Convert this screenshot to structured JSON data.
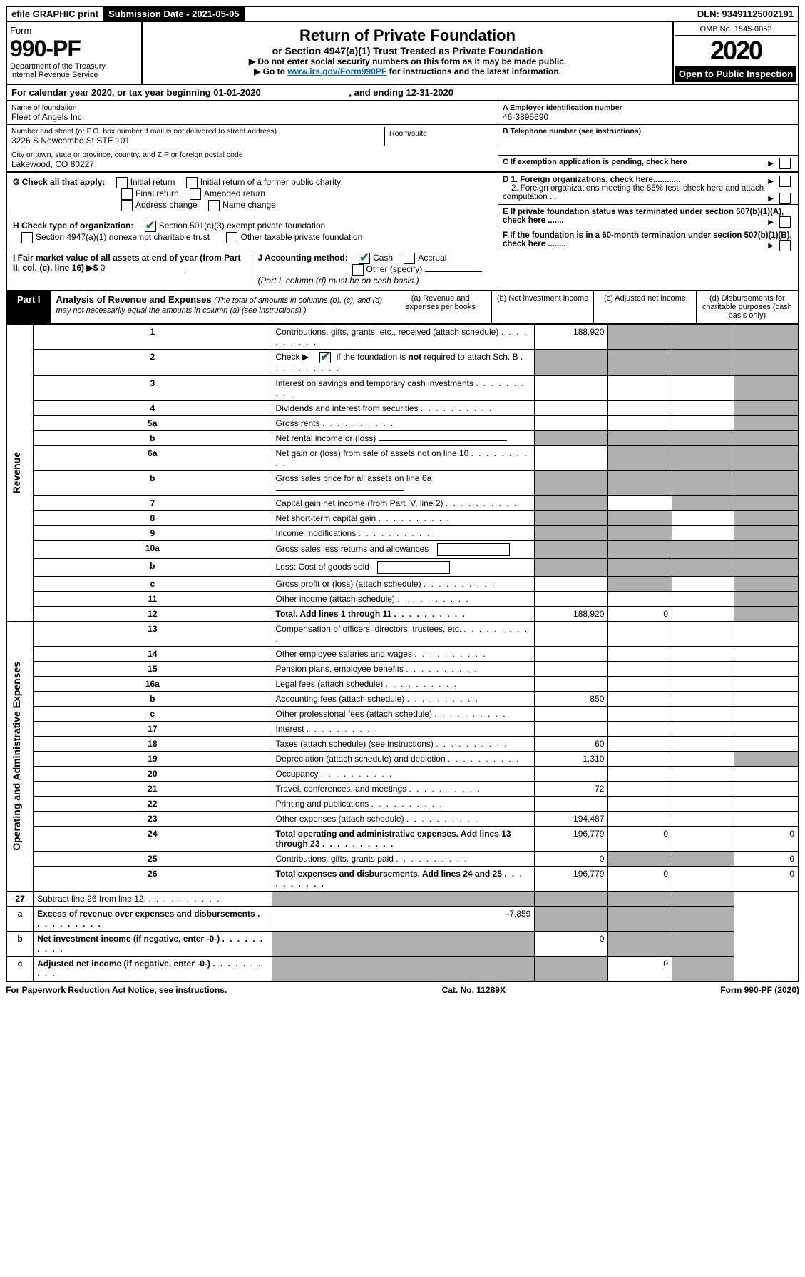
{
  "topbar": {
    "efile": "efile GRAPHIC print",
    "submission_label": "Submission Date - 2021-05-05",
    "dln_label": "DLN: 93491125002191"
  },
  "header": {
    "form_word": "Form",
    "form_no": "990-PF",
    "dept1": "Department of the Treasury",
    "dept2": "Internal Revenue Service",
    "title": "Return of Private Foundation",
    "subtitle": "or Section 4947(a)(1) Trust Treated as Private Foundation",
    "instr1": "▶ Do not enter social security numbers on this form as it may be made public.",
    "instr2_pre": "▶ Go to ",
    "instr2_link": "www.irs.gov/Form990PF",
    "instr2_post": " for instructions and the latest information.",
    "omb": "OMB No. 1545-0052",
    "year": "2020",
    "open": "Open to Public Inspection"
  },
  "calyear": {
    "text_a": "For calendar year 2020, or tax year beginning 01-01-2020",
    "text_b": ", and ending 12-31-2020"
  },
  "info": {
    "name_label": "Name of foundation",
    "name": "Fleet of Angels Inc",
    "addr_label": "Number and street (or P.O. box number if mail is not delivered to street address)",
    "addr": "3226 S Newcombe St STE 101",
    "room_label": "Room/suite",
    "city_label": "City or town, state or province, country, and ZIP or foreign postal code",
    "city": "Lakewood, CO  80227",
    "a_label": "A Employer identification number",
    "a_val": "46-3895690",
    "b_label": "B Telephone number (see instructions)",
    "c_label": "C If exemption application is pending, check here",
    "d1": "D 1. Foreign organizations, check here............",
    "d2": "2. Foreign organizations meeting the 85% test, check here and attach computation ...",
    "e": "E  If private foundation status was terminated under section 507(b)(1)(A), check here .......",
    "f": "F  If the foundation is in a 60-month termination under section 507(b)(1)(B), check here ........"
  },
  "g": {
    "label": "G Check all that apply:",
    "opts": [
      "Initial return",
      "Initial return of a former public charity",
      "Final return",
      "Amended return",
      "Address change",
      "Name change"
    ]
  },
  "h": {
    "label": "H Check type of organization:",
    "opt1": "Section 501(c)(3) exempt private foundation",
    "opt2": "Section 4947(a)(1) nonexempt charitable trust",
    "opt3": "Other taxable private foundation"
  },
  "i": {
    "label": "I Fair market value of all assets at end of year (from Part II, col. (c), line 16) ▶$ ",
    "val": "0"
  },
  "j": {
    "label": "J Accounting method:",
    "cash": "Cash",
    "accrual": "Accrual",
    "other": "Other (specify)",
    "note": "(Part I, column (d) must be on cash basis.)"
  },
  "part1": {
    "label": "Part I",
    "title": "Analysis of Revenue and Expenses",
    "title_note": " (The total of amounts in columns (b), (c), and (d) may not necessarily equal the amounts in column (a) (see instructions).)",
    "colA": "(a)   Revenue and expenses per books",
    "colB": "(b)  Net investment income",
    "colC": "(c)  Adjusted net income",
    "colD": "(d)  Disbursements for charitable purposes (cash basis only)"
  },
  "sections": {
    "revenue": "Revenue",
    "expenses": "Operating and Administrative Expenses"
  },
  "rows": [
    {
      "n": "1",
      "d": "Contributions, gifts, grants, etc., received (attach schedule)",
      "a": "188,920",
      "bGrey": true,
      "cGrey": true,
      "dGrey": true
    },
    {
      "n": "2",
      "d": "Check ▶ ☑ if the foundation is not required to attach Sch. B",
      "isCheck": true,
      "aGrey": true,
      "bGrey": true,
      "cGrey": true,
      "dGrey": true
    },
    {
      "n": "3",
      "d": "Interest on savings and temporary cash investments",
      "dGrey": true
    },
    {
      "n": "4",
      "d": "Dividends and interest from securities",
      "dGrey": true
    },
    {
      "n": "5a",
      "d": "Gross rents",
      "dGrey": true
    },
    {
      "n": "b",
      "d": "Net rental income or (loss)",
      "hasField": true,
      "aGrey": true,
      "bGrey": true,
      "cGrey": true,
      "dGrey": true
    },
    {
      "n": "6a",
      "d": "Net gain or (loss) from sale of assets not on line 10",
      "bGrey": true,
      "cGrey": true,
      "dGrey": true
    },
    {
      "n": "b",
      "d": "Gross sales price for all assets on line 6a",
      "hasField": true,
      "aGrey": true,
      "bGrey": true,
      "cGrey": true,
      "dGrey": true
    },
    {
      "n": "7",
      "d": "Capital gain net income (from Part IV, line 2)",
      "aGrey": true,
      "cGrey": true,
      "dGrey": true
    },
    {
      "n": "8",
      "d": "Net short-term capital gain",
      "aGrey": true,
      "bGrey": true,
      "dGrey": true
    },
    {
      "n": "9",
      "d": "Income modifications",
      "aGrey": true,
      "bGrey": true,
      "dGrey": true
    },
    {
      "n": "10a",
      "d": "Gross sales less returns and allowances",
      "hasFieldShort": true,
      "aGrey": true,
      "bGrey": true,
      "cGrey": true,
      "dGrey": true
    },
    {
      "n": "b",
      "d": "Less: Cost of goods sold",
      "hasFieldShort": true,
      "aGrey": true,
      "bGrey": true,
      "cGrey": true,
      "dGrey": true
    },
    {
      "n": "c",
      "d": "Gross profit or (loss) (attach schedule)",
      "bGrey": true,
      "dGrey": true
    },
    {
      "n": "11",
      "d": "Other income (attach schedule)",
      "dGrey": true
    },
    {
      "n": "12",
      "d": "Total. Add lines 1 through 11",
      "bold": true,
      "a": "188,920",
      "b": "0",
      "dGrey": true
    }
  ],
  "exp_rows": [
    {
      "n": "13",
      "d": "Compensation of officers, directors, trustees, etc."
    },
    {
      "n": "14",
      "d": "Other employee salaries and wages"
    },
    {
      "n": "15",
      "d": "Pension plans, employee benefits"
    },
    {
      "n": "16a",
      "d": "Legal fees (attach schedule)"
    },
    {
      "n": "b",
      "d": "Accounting fees (attach schedule)",
      "a": "850"
    },
    {
      "n": "c",
      "d": "Other professional fees (attach schedule)"
    },
    {
      "n": "17",
      "d": "Interest"
    },
    {
      "n": "18",
      "d": "Taxes (attach schedule) (see instructions)",
      "a": "60"
    },
    {
      "n": "19",
      "d": "Depreciation (attach schedule) and depletion",
      "a": "1,310",
      "dGrey": true
    },
    {
      "n": "20",
      "d": "Occupancy"
    },
    {
      "n": "21",
      "d": "Travel, conferences, and meetings",
      "a": "72"
    },
    {
      "n": "22",
      "d": "Printing and publications"
    },
    {
      "n": "23",
      "d": "Other expenses (attach schedule)",
      "a": "194,487"
    },
    {
      "n": "24",
      "d": "Total operating and administrative expenses. Add lines 13 through 23",
      "bold": true,
      "a": "196,779",
      "b": "0",
      "dVal": "0"
    },
    {
      "n": "25",
      "d": "Contributions, gifts, grants paid",
      "a": "0",
      "bGrey": true,
      "cGrey": true,
      "dVal": "0"
    },
    {
      "n": "26",
      "d": "Total expenses and disbursements. Add lines 24 and 25",
      "bold": true,
      "a": "196,779",
      "b": "0",
      "dVal": "0"
    }
  ],
  "sub_rows": [
    {
      "n": "27",
      "d": "Subtract line 26 from line 12:",
      "aGrey": true,
      "bGrey": true,
      "cGrey": true,
      "dGrey": true
    },
    {
      "n": "a",
      "d": "Excess of revenue over expenses and disbursements",
      "bold": true,
      "a": "-7,859",
      "bGrey": true,
      "cGrey": true,
      "dGrey": true
    },
    {
      "n": "b",
      "d": "Net investment income (if negative, enter -0-)",
      "bold": true,
      "aGrey": true,
      "b": "0",
      "cGrey": true,
      "dGrey": true
    },
    {
      "n": "c",
      "d": "Adjusted net income (if negative, enter -0-)",
      "bold": true,
      "aGrey": true,
      "bGrey": true,
      "c": "0",
      "dGrey": true
    }
  ],
  "footer": {
    "left": "For Paperwork Reduction Act Notice, see instructions.",
    "mid": "Cat. No. 11289X",
    "right": "Form 990-PF (2020)"
  }
}
